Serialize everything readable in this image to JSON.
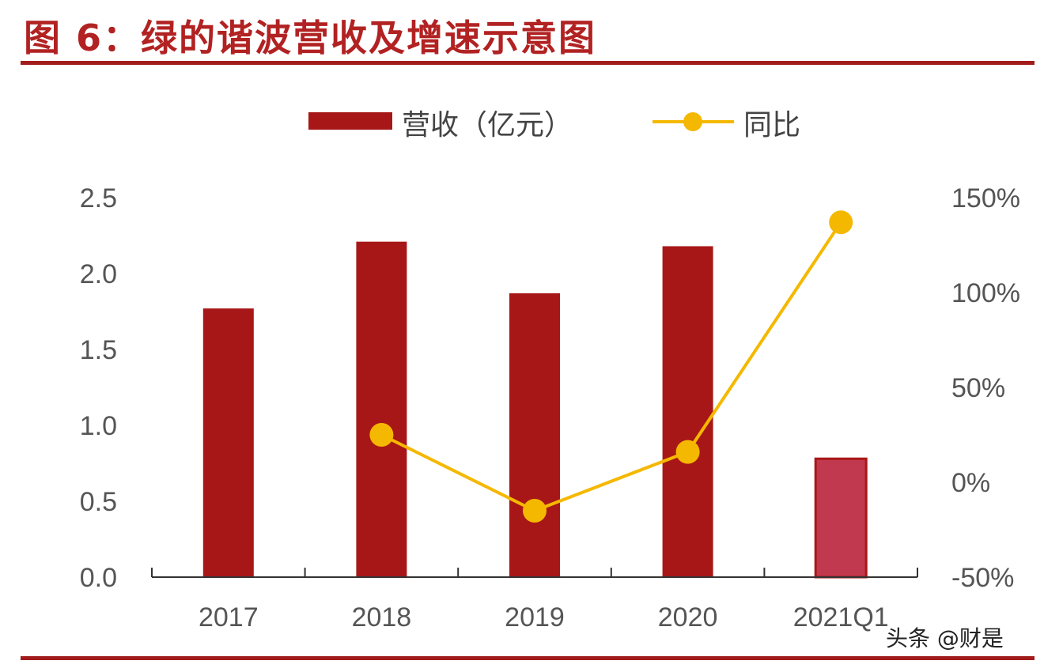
{
  "header": {
    "title": "图 6：绿的谐波营收及增速示意图"
  },
  "watermark": "头条 @财是",
  "chart_data": {
    "type": "bar",
    "categories": [
      "2017",
      "2018",
      "2019",
      "2020",
      "2021Q1"
    ],
    "series": [
      {
        "name": "营收（亿元）",
        "type": "bar",
        "axis": "left",
        "values": [
          1.77,
          2.21,
          1.87,
          2.18,
          0.78
        ],
        "color": "#a81717",
        "highlight_color": "#c0394f"
      },
      {
        "name": "同比",
        "type": "line",
        "axis": "right",
        "values": [
          null,
          25,
          -15,
          16,
          137
        ],
        "color": "#f5b800"
      }
    ],
    "left_axis": {
      "ylim": [
        0,
        2.5
      ],
      "ticks": [
        "0.0",
        "0.5",
        "1.0",
        "1.5",
        "2.0",
        "2.5"
      ]
    },
    "right_axis": {
      "ylim": [
        -50,
        150
      ],
      "ticks": [
        "-50%",
        "0%",
        "50%",
        "100%",
        "150%"
      ]
    },
    "legend_position": "top-center",
    "grid": false
  }
}
